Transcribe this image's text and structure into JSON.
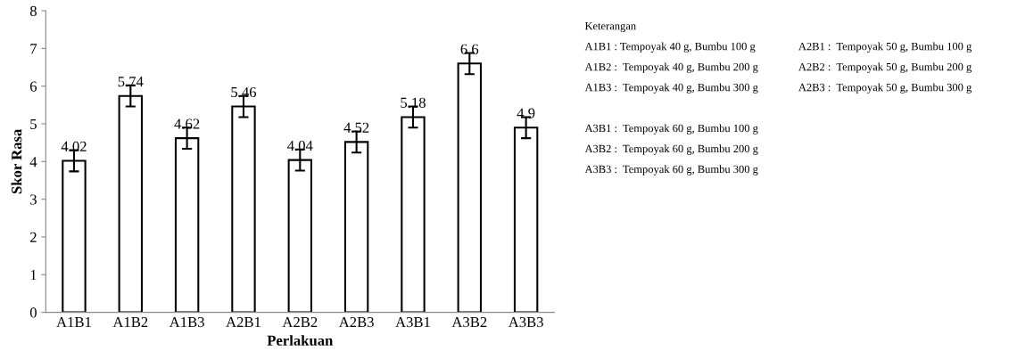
{
  "chart_data": {
    "type": "bar",
    "xlabel": "Perlakuan",
    "ylabel": "Skor Rasa",
    "categories": [
      "A1B1",
      "A1B2",
      "A1B3",
      "A2B1",
      "A2B2",
      "A2B3",
      "A3B1",
      "A3B2",
      "A3B3"
    ],
    "values": [
      4.02,
      5.74,
      4.62,
      5.46,
      4.04,
      4.52,
      5.18,
      6.6,
      4.9
    ],
    "errors": [
      0.28,
      0.28,
      0.28,
      0.28,
      0.28,
      0.28,
      0.28,
      0.28,
      0.28
    ],
    "color": "#ffffff",
    "data_labels": true,
    "ylim": [
      0,
      8
    ],
    "yticks": [
      0,
      1,
      2,
      3,
      4,
      5,
      6,
      7,
      8
    ],
    "grid": false,
    "annotations": [
      "Keterangan",
      "A1B1 : Tempoyak 40 g, Bumbu 100 g",
      "A1B2 :  Tempoyak 40 g, Bumbu 200 g",
      "A1B3 :  Tempoyak 40 g, Bumbu 300 g",
      "A2B1 :  Tempoyak 50 g, Bumbu 100 g",
      "A2B2 :  Tempoyak 50 g, Bumbu 200 g",
      "A2B3 :  Tempoyak 50 g, Bumbu 300 g",
      "A3B1 :  Tempoyak 60 g, Bumbu 100 g",
      "A3B2 :  Tempoyak 60 g, Bumbu 200 g",
      "A3B3 :  Tempoyak 60 g, Bumbu 300 g"
    ]
  }
}
